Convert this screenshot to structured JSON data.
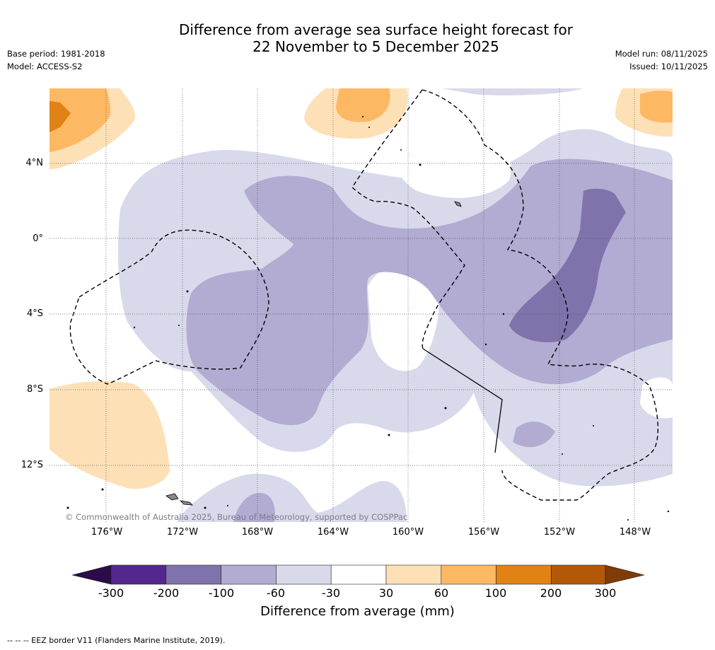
{
  "title": {
    "line1": "Difference from average sea surface height forecast for",
    "line2": "22 November to 5 December 2025"
  },
  "meta": {
    "base_period": "Base period: 1981-2018",
    "model": "Model: ACCESS-S2",
    "model_run": "Model run: 08/11/2025",
    "issued": "Issued: 10/11/2025"
  },
  "map": {
    "copyright": "© Commonwealth of Australia 2025, Bureau of Meteorology, supported by COSPPac",
    "lat_labels": [
      "4°N",
      "0°",
      "4°S",
      "8°S",
      "12°S"
    ],
    "lon_labels": [
      "176°W",
      "172°W",
      "168°W",
      "164°W",
      "160°W",
      "156°W",
      "152°W",
      "148°W"
    ]
  },
  "legend": {
    "ticks": [
      "-300",
      "-200",
      "-100",
      "-60",
      "-30",
      "30",
      "60",
      "100",
      "200",
      "300"
    ],
    "colors": [
      "#2d0a4a",
      "#54278f",
      "#8073ac",
      "#b2abd2",
      "#d8daeb",
      "#ffffff",
      "#fee0b6",
      "#fdb863",
      "#e08214",
      "#b35806",
      "#7f3b08"
    ],
    "label": "Difference from average (mm)"
  },
  "footnote": "-- --  -- EEZ border V11 (Flanders Marine Institute, 2019)."
}
